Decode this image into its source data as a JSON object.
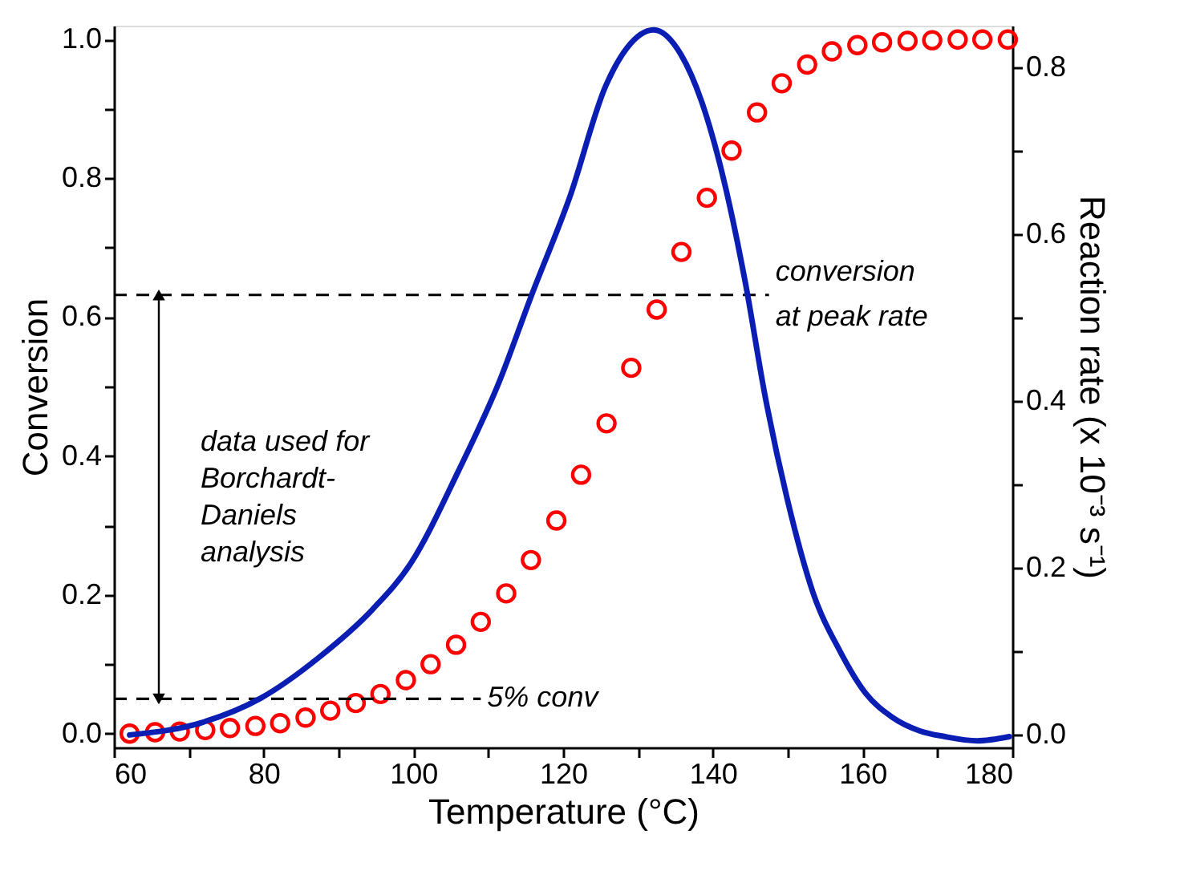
{
  "chart_data": {
    "type": "scatter",
    "xlabel": "Temperature (°C)",
    "ylabel": "Conversion",
    "y2label": "Reaction rate (x 10⁻³ s⁻¹)",
    "xlim": [
      60,
      180
    ],
    "ylim": [
      -0.02,
      1.02
    ],
    "y2lim": [
      -0.015,
      0.85
    ],
    "xticks": [
      60,
      {
        "value": 70,
        "label": null
      },
      80,
      {
        "value": 90,
        "label": null
      },
      100,
      {
        "value": 110,
        "label": null
      },
      120,
      {
        "value": 130,
        "label": null
      },
      140,
      {
        "value": 150,
        "label": null
      },
      160,
      {
        "value": 170,
        "label": null
      },
      180
    ],
    "yticks": [
      {
        "value": 0,
        "label": "0.0"
      },
      {
        "value": 0.1,
        "label": null
      },
      {
        "value": 0.2,
        "label": "0.2"
      },
      {
        "value": 0.3,
        "label": null
      },
      {
        "value": 0.4,
        "label": "0.4"
      },
      {
        "value": 0.5,
        "label": null
      },
      {
        "value": 0.6,
        "label": "0.6"
      },
      {
        "value": 0.7,
        "label": null
      },
      {
        "value": 0.8,
        "label": "0.8"
      },
      {
        "value": 0.9,
        "label": null
      },
      {
        "value": 1,
        "label": "1.0"
      }
    ],
    "y2ticks": [
      {
        "value": 0,
        "label": "0.0"
      },
      {
        "value": 0.1,
        "label": null
      },
      {
        "value": 0.2,
        "label": "0.2"
      },
      {
        "value": 0.3,
        "label": null
      },
      {
        "value": 0.4,
        "label": "0.4"
      },
      {
        "value": 0.5,
        "label": null
      },
      {
        "value": 0.6,
        "label": "0.6"
      },
      {
        "value": 0.7,
        "label": null
      },
      {
        "value": 0.8,
        "label": "0.8"
      }
    ],
    "grid": false,
    "series": [
      {
        "marker": "circle",
        "color": "#ff0000",
        "x": [
          62.1,
          65.5,
          68.8,
          72.2,
          75.5,
          78.9,
          82.2,
          85.6,
          88.9,
          92.3,
          95.6,
          99,
          102.3,
          105.7,
          109,
          112.4,
          115.7,
          119.1,
          122.4,
          125.8,
          129.1,
          132.5,
          135.8,
          139.2,
          142.5,
          145.9,
          149.2,
          152.6,
          155.9,
          159.3,
          162.6,
          166,
          169.3,
          172.7,
          176,
          179.4
        ],
        "values": [
          0,
          0.002,
          0.003,
          0.005,
          0.008,
          0.011,
          0.015,
          0.023,
          0.033,
          0.044,
          0.057,
          0.077,
          0.1,
          0.128,
          0.161,
          0.202,
          0.25,
          0.307,
          0.373,
          0.447,
          0.527,
          0.611,
          0.694,
          0.772,
          0.84,
          0.895,
          0.937,
          0.964,
          0.983,
          0.992,
          0.996,
          0.998,
          0.999,
          1,
          1,
          1
        ]
      },
      {
        "type": "line",
        "marker": "none",
        "axis": "y2",
        "color": "#0a1eb4",
        "x": [
          62.1,
          71.8,
          79.6,
          87.4,
          94.5,
          99.6,
          106,
          111.5,
          115.7,
          120.9,
          125.7,
          128.5,
          132.1,
          135.7,
          138.5,
          141.3,
          144.3,
          147,
          149.9,
          153.4,
          157,
          160.4,
          164,
          167.6,
          171,
          175.3,
          179.6
        ],
        "values": [
          0,
          0.015,
          0.044,
          0.093,
          0.15,
          0.205,
          0.316,
          0.424,
          0.525,
          0.645,
          0.778,
          0.823,
          0.845,
          0.816,
          0.759,
          0.671,
          0.544,
          0.405,
          0.284,
          0.17,
          0.1,
          0.05,
          0.021,
          0.005,
          -0.002,
          -0.007,
          -0.002
        ]
      }
    ],
    "ref_lines": [
      {
        "axis": "y",
        "value": 0.05,
        "color": "#000000",
        "line_style": "dashed"
      },
      {
        "axis": "y",
        "value": 0.632,
        "color": "#000000",
        "line_style": "dashed"
      }
    ],
    "annotations": [
      "data used for\nBorchardt-\nDaniels\nanalysis",
      {
        "text": "5% conv",
        "x": 109,
        "y": 0.05
      },
      {
        "text": "conversion\nat peak rate",
        "x": 147.5,
        "y": 0.632
      }
    ]
  }
}
